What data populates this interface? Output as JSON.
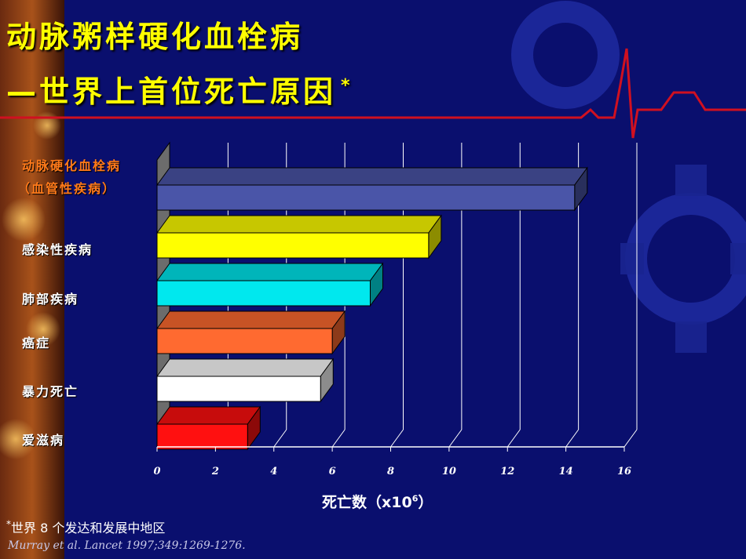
{
  "title": {
    "line1": "动脉粥样硬化血栓病",
    "line2": "—世界上首位死亡原因",
    "marker": "*"
  },
  "categories": [
    {
      "label_line1": "动脉硬化血栓病",
      "label_line2": "（血管性疾病）"
    },
    {
      "label_line1": "感染性疾病"
    },
    {
      "label_line1": "肺部疾病"
    },
    {
      "label_line1": "癌症"
    },
    {
      "label_line1": "暴力死亡"
    },
    {
      "label_line1": "爱滋病"
    }
  ],
  "xaxis": {
    "label_main": "死亡数（x10",
    "label_exp": "6",
    "label_close": "）",
    "ticks": [
      "0",
      "2",
      "4",
      "6",
      "8",
      "10",
      "12",
      "14",
      "16"
    ]
  },
  "footnote": {
    "marker": "*",
    "text": "世界 8 个发达和发展中地区"
  },
  "reference": "Murray et al.  Lancet 1997;349:1269-1276.",
  "colors": {
    "title": "#ffff00",
    "category_highlight": "#ff7a1a",
    "background": "#0a0f6e",
    "ecg_line": "#d01020"
  },
  "chart_data": {
    "type": "bar",
    "orientation": "horizontal",
    "style": "3d",
    "categories": [
      "动脉硬化血栓病（血管性疾病）",
      "感染性疾病",
      "肺部疾病",
      "癌症",
      "暴力死亡",
      "爱滋病"
    ],
    "values": [
      14.3,
      9.3,
      7.3,
      6.0,
      5.6,
      3.1
    ],
    "bar_colors": [
      "#4a55a8",
      "#ffff00",
      "#00e8ee",
      "#ff6a30",
      "#ffffff",
      "#ff1010"
    ],
    "xlim": [
      0,
      16
    ],
    "grid": true,
    "legend": "none"
  }
}
